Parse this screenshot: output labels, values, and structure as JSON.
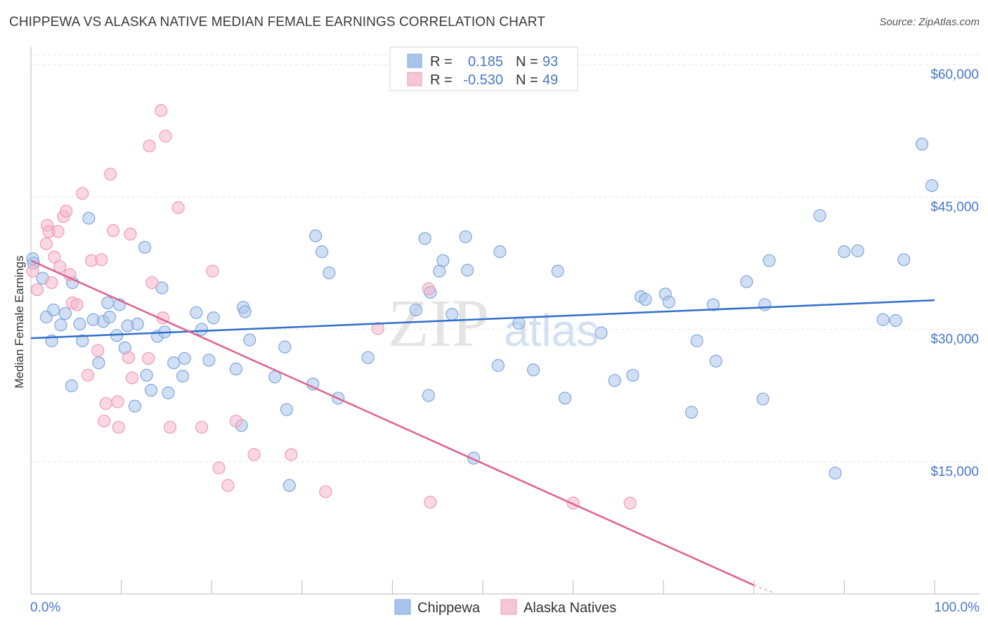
{
  "title": "CHIPPEWA VS ALASKA NATIVE MEDIAN FEMALE EARNINGS CORRELATION CHART",
  "source": "Source: ZipAtlas.com",
  "watermark": {
    "zip": "ZIP",
    "atlas": "atlas"
  },
  "legend": {
    "r_label": "R =",
    "n_label": "N =",
    "entries": [
      {
        "name": "Chippewa",
        "r": "0.185",
        "n": "93",
        "color": "#a9c4eb"
      },
      {
        "name": "Alaska Natives",
        "r": "-0.530",
        "n": "49",
        "color": "#f5b7cb"
      }
    ]
  },
  "chart_data": {
    "type": "scatter",
    "ylabel": "Median Female Earnings",
    "xlim": [
      0,
      100
    ],
    "ylim": [
      0,
      62000
    ],
    "x_tick_labels": [
      "0.0%",
      "100.0%"
    ],
    "y_ticks": [
      {
        "value": 15000,
        "label": "$15,000"
      },
      {
        "value": 30000,
        "label": "$30,000"
      },
      {
        "value": 45000,
        "label": "$45,000"
      },
      {
        "value": 60000,
        "label": "$60,000"
      }
    ],
    "grid": "horizontal dashed",
    "series": [
      {
        "name": "Chippewa",
        "color": "#7fa7de",
        "fill": "#a9c4eb",
        "trend": {
          "x0": 0,
          "y0": 29000,
          "x1": 100,
          "y1": 33300,
          "color": "#2f6fcb"
        },
        "points": [
          [
            0.2,
            38000
          ],
          [
            0.3,
            37500
          ],
          [
            1.3,
            35800
          ],
          [
            1.7,
            31400
          ],
          [
            2.3,
            28700
          ],
          [
            2.5,
            32200
          ],
          [
            3.3,
            30500
          ],
          [
            3.8,
            31800
          ],
          [
            4.5,
            23600
          ],
          [
            4.6,
            35300
          ],
          [
            5.4,
            30600
          ],
          [
            5.7,
            28700
          ],
          [
            6.4,
            42600
          ],
          [
            6.9,
            31100
          ],
          [
            7.5,
            26200
          ],
          [
            8.0,
            30900
          ],
          [
            8.5,
            33000
          ],
          [
            8.7,
            31400
          ],
          [
            9.5,
            29300
          ],
          [
            9.8,
            32800
          ],
          [
            10.4,
            27900
          ],
          [
            10.7,
            30400
          ],
          [
            11.5,
            21300
          ],
          [
            11.8,
            30600
          ],
          [
            12.6,
            39300
          ],
          [
            12.8,
            24800
          ],
          [
            13.3,
            23100
          ],
          [
            14.0,
            29200
          ],
          [
            14.5,
            34700
          ],
          [
            14.8,
            29700
          ],
          [
            15.2,
            22800
          ],
          [
            15.8,
            26200
          ],
          [
            16.8,
            24700
          ],
          [
            17.0,
            26700
          ],
          [
            18.3,
            31900
          ],
          [
            18.9,
            30000
          ],
          [
            19.7,
            26500
          ],
          [
            20.2,
            31300
          ],
          [
            22.7,
            25500
          ],
          [
            23.3,
            19100
          ],
          [
            23.5,
            32500
          ],
          [
            23.7,
            32000
          ],
          [
            24.2,
            28800
          ],
          [
            27.0,
            24600
          ],
          [
            28.1,
            28000
          ],
          [
            28.3,
            20900
          ],
          [
            28.6,
            12300
          ],
          [
            31.2,
            23800
          ],
          [
            31.5,
            40600
          ],
          [
            32.2,
            38800
          ],
          [
            33.0,
            36400
          ],
          [
            34.0,
            22200
          ],
          [
            37.3,
            26800
          ],
          [
            42.6,
            32200
          ],
          [
            43.6,
            40300
          ],
          [
            44.0,
            22500
          ],
          [
            44.2,
            34200
          ],
          [
            45.2,
            36600
          ],
          [
            45.6,
            37800
          ],
          [
            46.6,
            31700
          ],
          [
            48.1,
            40500
          ],
          [
            48.3,
            36700
          ],
          [
            49.0,
            15400
          ],
          [
            51.7,
            25900
          ],
          [
            51.9,
            38800
          ],
          [
            54.0,
            30700
          ],
          [
            55.6,
            25400
          ],
          [
            58.3,
            36600
          ],
          [
            59.1,
            22200
          ],
          [
            63.1,
            29600
          ],
          [
            64.6,
            24200
          ],
          [
            66.6,
            24800
          ],
          [
            67.5,
            33700
          ],
          [
            68.0,
            33400
          ],
          [
            70.2,
            34000
          ],
          [
            70.6,
            33100
          ],
          [
            73.1,
            20600
          ],
          [
            73.7,
            28700
          ],
          [
            75.5,
            32800
          ],
          [
            75.8,
            26400
          ],
          [
            79.2,
            35400
          ],
          [
            81.0,
            22100
          ],
          [
            81.2,
            32800
          ],
          [
            81.7,
            37800
          ],
          [
            87.3,
            42900
          ],
          [
            89.0,
            13700
          ],
          [
            90.0,
            38800
          ],
          [
            91.5,
            38900
          ],
          [
            94.3,
            31100
          ],
          [
            95.7,
            31000
          ],
          [
            96.6,
            37900
          ],
          [
            98.6,
            51000
          ],
          [
            99.7,
            46300
          ]
        ]
      },
      {
        "name": "Alaska Natives",
        "color": "#f29ab7",
        "fill": "#f5b7cb",
        "trend": {
          "x0": 0,
          "y0": 37800,
          "x1": 80,
          "y1": 1000,
          "color": "#e0608e",
          "dash_to": {
            "x": 82,
            "y": 200
          }
        },
        "points": [
          [
            0.2,
            36600
          ],
          [
            0.7,
            34500
          ],
          [
            1.7,
            39700
          ],
          [
            1.8,
            41800
          ],
          [
            2.0,
            41100
          ],
          [
            2.3,
            35300
          ],
          [
            2.6,
            38200
          ],
          [
            3.0,
            41100
          ],
          [
            3.2,
            37100
          ],
          [
            3.6,
            42800
          ],
          [
            3.9,
            43400
          ],
          [
            4.3,
            36200
          ],
          [
            4.6,
            33000
          ],
          [
            5.1,
            32800
          ],
          [
            5.7,
            45400
          ],
          [
            6.3,
            24800
          ],
          [
            6.7,
            37800
          ],
          [
            7.4,
            27600
          ],
          [
            7.8,
            37900
          ],
          [
            8.1,
            19600
          ],
          [
            8.3,
            21600
          ],
          [
            8.8,
            47600
          ],
          [
            9.1,
            41200
          ],
          [
            9.6,
            21800
          ],
          [
            9.7,
            18900
          ],
          [
            10.8,
            26800
          ],
          [
            11.0,
            40800
          ],
          [
            11.2,
            24500
          ],
          [
            13.0,
            26700
          ],
          [
            13.1,
            50800
          ],
          [
            13.4,
            35300
          ],
          [
            14.4,
            54800
          ],
          [
            14.6,
            31300
          ],
          [
            14.9,
            51900
          ],
          [
            15.4,
            18900
          ],
          [
            16.3,
            43800
          ],
          [
            18.9,
            18900
          ],
          [
            20.1,
            36600
          ],
          [
            20.8,
            14300
          ],
          [
            21.8,
            12300
          ],
          [
            22.7,
            19600
          ],
          [
            24.7,
            15800
          ],
          [
            28.8,
            15800
          ],
          [
            32.6,
            11600
          ],
          [
            38.4,
            30100
          ],
          [
            44.0,
            34600
          ],
          [
            44.2,
            10400
          ],
          [
            60.0,
            10300
          ],
          [
            66.3,
            10300
          ]
        ]
      }
    ]
  }
}
